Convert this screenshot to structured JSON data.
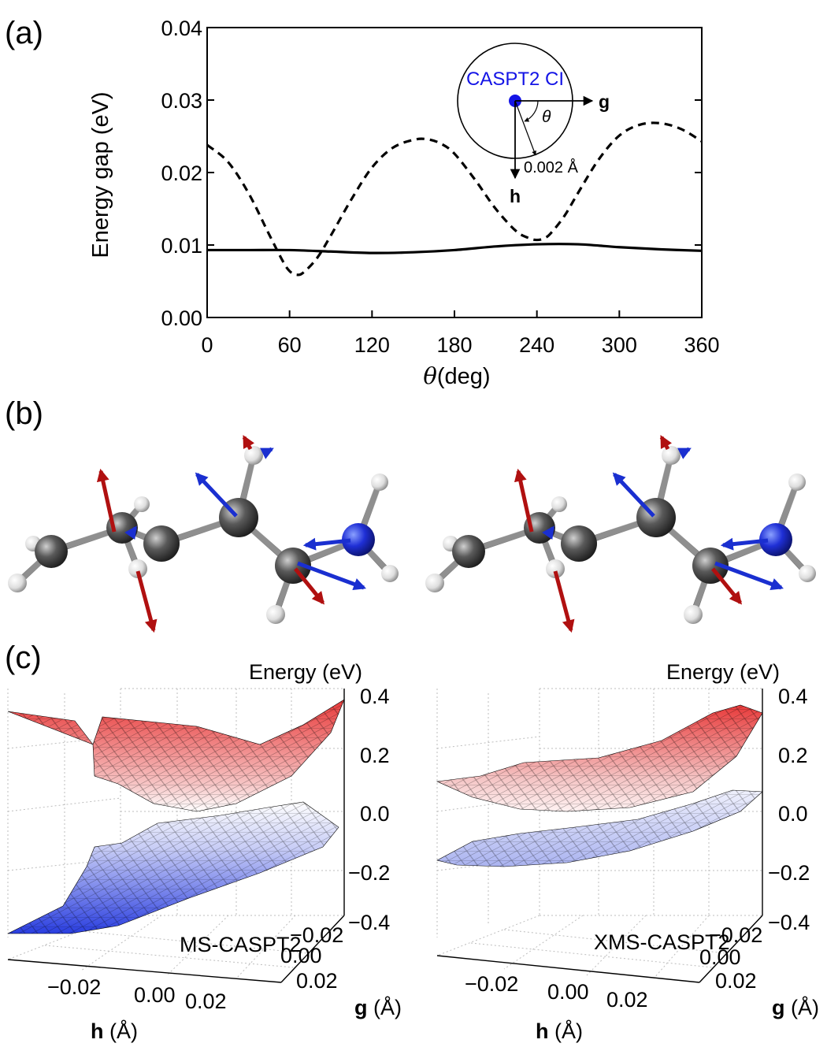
{
  "panels": {
    "a": {
      "label": "(a)",
      "chart_data": {
        "type": "line",
        "xlabel_symbol": "θ",
        "xlabel_unit": "(deg)",
        "ylabel": "Energy gap (eV)",
        "xlim": [
          0,
          360
        ],
        "ylim": [
          0,
          0.04
        ],
        "x_ticks": [
          "0",
          "60",
          "120",
          "180",
          "240",
          "300",
          "360"
        ],
        "y_ticks": [
          "0.00",
          "0.01",
          "0.02",
          "0.03",
          "0.04"
        ],
        "series": [
          {
            "style": "dashed",
            "x": [
              0,
              15,
              30,
              45,
              55,
              60,
              65,
              70,
              80,
              90,
              105,
              120,
              135,
              150,
              160,
              170,
              180,
              195,
              210,
              225,
              235,
              240,
              245,
              250,
              260,
              270,
              285,
              300,
              315,
              330,
              345,
              360
            ],
            "y": [
              0.0238,
              0.0215,
              0.0172,
              0.0115,
              0.0078,
              0.0064,
              0.0059,
              0.0062,
              0.0082,
              0.0113,
              0.0163,
              0.0207,
              0.0234,
              0.0245,
              0.0246,
              0.024,
              0.0226,
              0.019,
              0.015,
              0.0119,
              0.0109,
              0.0107,
              0.0109,
              0.0116,
              0.014,
              0.0172,
              0.0218,
              0.0251,
              0.0266,
              0.0268,
              0.026,
              0.0243
            ]
          },
          {
            "style": "solid",
            "x": [
              0,
              30,
              60,
              90,
              120,
              150,
              180,
              210,
              240,
              270,
              300,
              330,
              360
            ],
            "y": [
              0.0093,
              0.0093,
              0.0093,
              0.0091,
              0.0089,
              0.009,
              0.0093,
              0.0098,
              0.0101,
              0.0101,
              0.0097,
              0.0094,
              0.0092
            ]
          }
        ]
      },
      "inset": {
        "title": "CASPT2 CI",
        "g_label": "g",
        "h_label": "h",
        "theta_label": "θ",
        "radius_label": "0.002 Å",
        "ci_color": "#1414e6"
      }
    },
    "b": {
      "label": "(b)",
      "arrow_colors": {
        "g": "#b01010",
        "h": "#1a2fd0"
      },
      "atom_colors": {
        "carbon": "#3a3a3a",
        "hydrogen": "#e6e6e6",
        "nitrogen": "#1f2fd6"
      }
    },
    "c": {
      "label": "(c)",
      "plots": [
        {
          "method": "MS-CASPT2",
          "zlabel": "Energy (eV)",
          "z_ticks": [
            "0.4",
            "0.2",
            "0.0",
            "−0.2",
            "−0.4"
          ],
          "h_ticks": [
            "−0.02",
            "0.00",
            "0.02"
          ],
          "g_ticks": [
            "−0.02",
            "0.00",
            "0.02"
          ],
          "hlabel_bold": "h",
          "hlabel_unit": " (Å)",
          "glabel_bold": "g",
          "glabel_unit": " (Å)",
          "zlim": [
            -0.4,
            0.4
          ]
        },
        {
          "method": "XMS-CASPT2",
          "zlabel": "Energy (eV)",
          "z_ticks": [
            "0.4",
            "0.2",
            "0.0",
            "−0.2",
            "−0.4"
          ],
          "h_ticks": [
            "−0.02",
            "0.00",
            "0.02"
          ],
          "g_ticks": [
            "−0.02",
            "0.00",
            "0.02"
          ],
          "hlabel_bold": "h",
          "hlabel_unit": " (Å)",
          "glabel_bold": "g",
          "glabel_unit": " (Å)",
          "zlim": [
            -0.4,
            0.4
          ]
        }
      ],
      "surface_colors": {
        "upper_top": "#e83a3a",
        "upper_bottom": "#ffffff",
        "lower_top": "#ffffff",
        "lower_bottom": "#2a3ee0"
      }
    }
  }
}
